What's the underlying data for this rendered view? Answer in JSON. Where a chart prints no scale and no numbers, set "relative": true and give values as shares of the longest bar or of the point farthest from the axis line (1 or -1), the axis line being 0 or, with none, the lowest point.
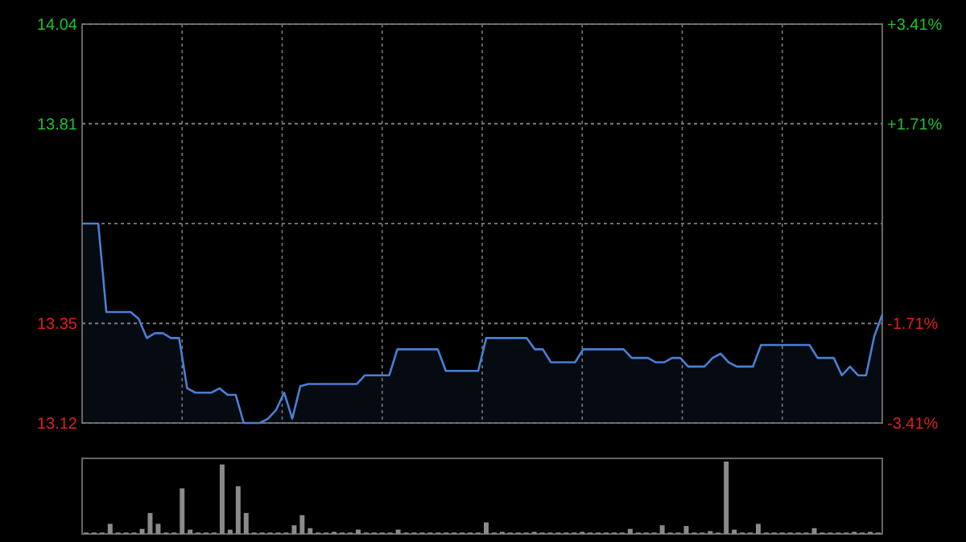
{
  "chart_data": [
    {
      "type": "area",
      "categories": [
        null,
        null,
        null,
        null,
        null,
        null,
        null,
        null,
        null,
        null,
        null,
        null,
        null,
        null,
        null,
        null,
        null,
        null,
        null,
        null,
        null,
        null,
        null,
        null,
        null,
        null,
        null,
        null,
        null,
        null,
        null,
        null,
        null,
        null,
        null,
        null,
        null,
        null,
        null,
        null,
        null,
        null,
        null,
        null,
        null,
        null,
        null,
        null,
        null,
        null,
        null,
        null,
        null,
        null,
        null,
        null,
        null,
        null,
        null,
        null,
        null,
        null,
        null,
        null,
        null,
        null,
        null,
        null,
        null,
        null,
        null,
        null,
        null,
        null,
        null,
        null,
        null,
        null,
        null,
        null,
        null,
        null,
        null,
        null,
        null,
        null,
        null,
        null,
        null,
        null,
        null,
        null,
        null,
        null,
        null,
        null,
        null,
        null,
        null,
        null
      ],
      "series": [
        {
          "color": "#4a7fd4",
          "values": [
            13.58,
            13.58,
            13.58,
            13.376,
            13.376,
            13.376,
            13.376,
            13.36,
            13.316,
            13.327,
            13.327,
            13.316,
            13.316,
            13.2,
            13.19,
            13.19,
            13.19,
            13.2,
            13.185,
            13.185,
            13.12,
            13.12,
            13.12,
            13.13,
            13.15,
            13.19,
            13.13,
            13.205,
            13.21,
            13.21,
            13.21,
            13.21,
            13.21,
            13.21,
            13.21,
            13.23,
            13.23,
            13.23,
            13.23,
            13.29,
            13.29,
            13.29,
            13.29,
            13.29,
            13.29,
            13.24,
            13.24,
            13.24,
            13.24,
            13.24,
            13.316,
            13.316,
            13.316,
            13.316,
            13.316,
            13.316,
            13.29,
            13.29,
            13.26,
            13.26,
            13.26,
            13.26,
            13.29,
            13.29,
            13.29,
            13.29,
            13.29,
            13.29,
            13.27,
            13.27,
            13.27,
            13.26,
            13.26,
            13.27,
            13.27,
            13.25,
            13.25,
            13.25,
            13.27,
            13.28,
            13.26,
            13.25,
            13.25,
            13.25,
            13.3,
            13.3,
            13.3,
            13.3,
            13.3,
            13.3,
            13.3,
            13.27,
            13.27,
            13.27,
            13.23,
            13.25,
            13.23,
            13.23,
            13.32,
            13.37
          ]
        }
      ],
      "ylim": [
        13.12,
        14.04
      ],
      "yticks": [
        14.04,
        13.81,
        {
          "value": 13.58,
          "label": null
        },
        13.35,
        13.12
      ],
      "y2lim": [
        -3.41,
        3.41
      ],
      "y2ticks": [
        {
          "value": 3.41,
          "label": "+3.41%"
        },
        {
          "value": 1.71,
          "label": "+1.71%"
        },
        {
          "value": 0,
          "label": null
        },
        {
          "value": -1.71,
          "label": "-1.71%"
        },
        {
          "value": -3.41,
          "label": "-3.41%"
        }
      ],
      "grid": true
    },
    {
      "type": "bar",
      "relative": true,
      "categories": [
        null,
        null,
        null,
        null,
        null,
        null,
        null,
        null,
        null,
        null,
        null,
        null,
        null,
        null,
        null,
        null,
        null,
        null,
        null,
        null,
        null,
        null,
        null,
        null,
        null,
        null,
        null,
        null,
        null,
        null,
        null,
        null,
        null,
        null,
        null,
        null,
        null,
        null,
        null,
        null,
        null,
        null,
        null,
        null,
        null,
        null,
        null,
        null,
        null,
        null,
        null,
        null,
        null,
        null,
        null,
        null,
        null,
        null,
        null,
        null,
        null,
        null,
        null,
        null,
        null,
        null,
        null,
        null,
        null,
        null,
        null,
        null,
        null,
        null,
        null,
        null,
        null,
        null,
        null,
        null,
        null,
        null,
        null,
        null,
        null,
        null,
        null,
        null,
        null,
        null,
        null,
        null,
        null,
        null,
        null,
        null,
        null,
        null,
        null,
        null
      ],
      "color": "#8a8a8a",
      "values": [
        0.02,
        0.02,
        0.02,
        0.14,
        0.02,
        0.02,
        0.02,
        0.07,
        0.29,
        0.14,
        0.02,
        0.02,
        0.63,
        0.06,
        0.02,
        0.02,
        0.02,
        0.96,
        0.06,
        0.66,
        0.29,
        0.02,
        0.02,
        0.02,
        0.02,
        0.02,
        0.12,
        0.26,
        0.08,
        0.02,
        0.02,
        0.03,
        0.02,
        0.02,
        0.06,
        0.02,
        0.02,
        0.02,
        0.02,
        0.06,
        0.02,
        0.02,
        0.02,
        0.02,
        0.02,
        0.02,
        0.02,
        0.02,
        0.02,
        0.02,
        0.16,
        0.02,
        0.03,
        0.02,
        0.02,
        0.02,
        0.03,
        0.02,
        0.02,
        0.02,
        0.02,
        0.02,
        0.03,
        0.02,
        0.02,
        0.02,
        0.02,
        0.02,
        0.07,
        0.02,
        0.02,
        0.02,
        0.12,
        0.02,
        0.02,
        0.11,
        0.02,
        0.02,
        0.04,
        0.02,
        1,
        0.06,
        0.02,
        0.02,
        0.14,
        0.02,
        0.02,
        0.02,
        0.02,
        0.02,
        0.02,
        0.08,
        0.02,
        0.02,
        0.02,
        0.02,
        0.03,
        0.02,
        0.03,
        0.02
      ]
    }
  ]
}
